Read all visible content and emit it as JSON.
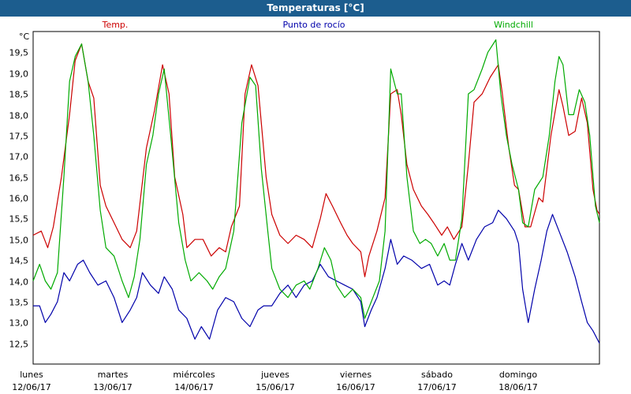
{
  "window": {
    "title": "Temperaturas [°C]"
  },
  "chart_data": {
    "type": "line",
    "title": "Temperaturas [°C]",
    "ylabel": "°C",
    "ylim": [
      12.0,
      20.0
    ],
    "yticks": [
      12.5,
      13.0,
      13.5,
      14.0,
      14.5,
      15.0,
      15.5,
      16.0,
      16.5,
      17.0,
      17.5,
      18.0,
      18.5,
      19.0,
      19.5
    ],
    "ytick_labels": [
      "12,5",
      "13,0",
      "13,5",
      "14,0",
      "14,5",
      "15,0",
      "15,5",
      "16,0",
      "16,5",
      "17,0",
      "17,5",
      "18,0",
      "18,5",
      "19,0",
      "19,5"
    ],
    "xlim": [
      0,
      7
    ],
    "days": [
      {
        "day": "lunes",
        "date": "12/06/17"
      },
      {
        "day": "martes",
        "date": "13/06/17"
      },
      {
        "day": "miércoles",
        "date": "14/06/17"
      },
      {
        "day": "jueves",
        "date": "15/06/17"
      },
      {
        "day": "viernes",
        "date": "16/06/17"
      },
      {
        "day": "sábado",
        "date": "17/06/17"
      },
      {
        "day": "domingo",
        "date": "18/06/17"
      }
    ],
    "grid": true,
    "series": [
      {
        "name": "Temp.",
        "color": "#cc0000",
        "points": [
          [
            0.0,
            15.1
          ],
          [
            0.1,
            15.2
          ],
          [
            0.18,
            14.8
          ],
          [
            0.25,
            15.3
          ],
          [
            0.35,
            16.5
          ],
          [
            0.45,
            18.0
          ],
          [
            0.52,
            19.3
          ],
          [
            0.6,
            19.7
          ],
          [
            0.68,
            18.8
          ],
          [
            0.75,
            18.4
          ],
          [
            0.83,
            16.3
          ],
          [
            0.9,
            15.8
          ],
          [
            1.0,
            15.4
          ],
          [
            1.1,
            15.0
          ],
          [
            1.2,
            14.8
          ],
          [
            1.28,
            15.2
          ],
          [
            1.4,
            17.2
          ],
          [
            1.5,
            18.1
          ],
          [
            1.6,
            19.2
          ],
          [
            1.68,
            18.5
          ],
          [
            1.75,
            16.5
          ],
          [
            1.85,
            15.6
          ],
          [
            1.9,
            14.8
          ],
          [
            2.0,
            15.0
          ],
          [
            2.1,
            15.0
          ],
          [
            2.2,
            14.6
          ],
          [
            2.3,
            14.8
          ],
          [
            2.38,
            14.7
          ],
          [
            2.45,
            15.3
          ],
          [
            2.55,
            15.8
          ],
          [
            2.62,
            18.5
          ],
          [
            2.7,
            19.2
          ],
          [
            2.78,
            18.7
          ],
          [
            2.88,
            16.5
          ],
          [
            2.95,
            15.6
          ],
          [
            3.05,
            15.1
          ],
          [
            3.15,
            14.9
          ],
          [
            3.25,
            15.1
          ],
          [
            3.35,
            15.0
          ],
          [
            3.45,
            14.8
          ],
          [
            3.55,
            15.5
          ],
          [
            3.62,
            16.1
          ],
          [
            3.7,
            15.8
          ],
          [
            3.8,
            15.4
          ],
          [
            3.88,
            15.1
          ],
          [
            3.95,
            14.9
          ],
          [
            4.05,
            14.7
          ],
          [
            4.1,
            14.1
          ],
          [
            4.15,
            14.6
          ],
          [
            4.25,
            15.2
          ],
          [
            4.35,
            16.0
          ],
          [
            4.42,
            18.5
          ],
          [
            4.5,
            18.6
          ],
          [
            4.55,
            18.0
          ],
          [
            4.62,
            16.8
          ],
          [
            4.7,
            16.2
          ],
          [
            4.8,
            15.8
          ],
          [
            4.88,
            15.6
          ],
          [
            4.95,
            15.4
          ],
          [
            5.05,
            15.1
          ],
          [
            5.12,
            15.3
          ],
          [
            5.2,
            15.0
          ],
          [
            5.3,
            15.3
          ],
          [
            5.38,
            16.8
          ],
          [
            5.45,
            18.3
          ],
          [
            5.55,
            18.5
          ],
          [
            5.65,
            18.9
          ],
          [
            5.75,
            19.2
          ],
          [
            5.8,
            18.5
          ],
          [
            5.88,
            17.2
          ],
          [
            5.95,
            16.3
          ],
          [
            6.0,
            16.2
          ],
          [
            6.08,
            15.3
          ],
          [
            6.15,
            15.3
          ],
          [
            6.25,
            16.0
          ],
          [
            6.3,
            15.9
          ],
          [
            6.4,
            17.5
          ],
          [
            6.5,
            18.6
          ],
          [
            6.55,
            18.2
          ],
          [
            6.62,
            17.5
          ],
          [
            6.7,
            17.6
          ],
          [
            6.78,
            18.4
          ],
          [
            6.85,
            17.8
          ],
          [
            6.92,
            16.2
          ],
          [
            6.97,
            15.7
          ],
          [
            7.0,
            15.6
          ]
        ]
      },
      {
        "name": "Punto de rocío",
        "color": "#0000aa",
        "points": [
          [
            0.0,
            13.4
          ],
          [
            0.08,
            13.4
          ],
          [
            0.15,
            13.0
          ],
          [
            0.22,
            13.2
          ],
          [
            0.3,
            13.5
          ],
          [
            0.38,
            14.2
          ],
          [
            0.45,
            14.0
          ],
          [
            0.55,
            14.4
          ],
          [
            0.62,
            14.5
          ],
          [
            0.7,
            14.2
          ],
          [
            0.8,
            13.9
          ],
          [
            0.9,
            14.0
          ],
          [
            1.0,
            13.6
          ],
          [
            1.1,
            13.0
          ],
          [
            1.2,
            13.3
          ],
          [
            1.28,
            13.6
          ],
          [
            1.35,
            14.2
          ],
          [
            1.45,
            13.9
          ],
          [
            1.55,
            13.7
          ],
          [
            1.62,
            14.1
          ],
          [
            1.72,
            13.8
          ],
          [
            1.8,
            13.3
          ],
          [
            1.9,
            13.1
          ],
          [
            2.0,
            12.6
          ],
          [
            2.08,
            12.9
          ],
          [
            2.18,
            12.6
          ],
          [
            2.28,
            13.3
          ],
          [
            2.38,
            13.6
          ],
          [
            2.48,
            13.5
          ],
          [
            2.58,
            13.1
          ],
          [
            2.68,
            12.9
          ],
          [
            2.78,
            13.3
          ],
          [
            2.85,
            13.4
          ],
          [
            2.95,
            13.4
          ],
          [
            3.05,
            13.7
          ],
          [
            3.15,
            13.9
          ],
          [
            3.25,
            13.6
          ],
          [
            3.35,
            13.9
          ],
          [
            3.45,
            14.0
          ],
          [
            3.55,
            14.4
          ],
          [
            3.65,
            14.1
          ],
          [
            3.75,
            14.0
          ],
          [
            3.85,
            13.9
          ],
          [
            3.95,
            13.8
          ],
          [
            4.05,
            13.5
          ],
          [
            4.1,
            12.9
          ],
          [
            4.18,
            13.3
          ],
          [
            4.25,
            13.6
          ],
          [
            4.35,
            14.3
          ],
          [
            4.42,
            15.0
          ],
          [
            4.5,
            14.4
          ],
          [
            4.58,
            14.6
          ],
          [
            4.68,
            14.5
          ],
          [
            4.8,
            14.3
          ],
          [
            4.9,
            14.4
          ],
          [
            5.0,
            13.9
          ],
          [
            5.08,
            14.0
          ],
          [
            5.15,
            13.9
          ],
          [
            5.22,
            14.4
          ],
          [
            5.3,
            14.9
          ],
          [
            5.38,
            14.5
          ],
          [
            5.48,
            15.0
          ],
          [
            5.58,
            15.3
          ],
          [
            5.68,
            15.4
          ],
          [
            5.75,
            15.7
          ],
          [
            5.85,
            15.5
          ],
          [
            5.95,
            15.2
          ],
          [
            6.0,
            14.9
          ],
          [
            6.05,
            13.8
          ],
          [
            6.12,
            13.0
          ],
          [
            6.2,
            13.8
          ],
          [
            6.28,
            14.5
          ],
          [
            6.35,
            15.2
          ],
          [
            6.42,
            15.6
          ],
          [
            6.5,
            15.2
          ],
          [
            6.6,
            14.7
          ],
          [
            6.7,
            14.1
          ],
          [
            6.78,
            13.5
          ],
          [
            6.85,
            13.0
          ],
          [
            6.92,
            12.8
          ],
          [
            7.0,
            12.5
          ]
        ]
      },
      {
        "name": "Windchill",
        "color": "#00aa00",
        "points": [
          [
            0.0,
            14.0
          ],
          [
            0.08,
            14.4
          ],
          [
            0.15,
            14.0
          ],
          [
            0.22,
            13.8
          ],
          [
            0.3,
            14.2
          ],
          [
            0.38,
            16.5
          ],
          [
            0.45,
            18.8
          ],
          [
            0.52,
            19.4
          ],
          [
            0.6,
            19.7
          ],
          [
            0.68,
            18.8
          ],
          [
            0.75,
            17.5
          ],
          [
            0.83,
            15.7
          ],
          [
            0.9,
            14.8
          ],
          [
            1.0,
            14.6
          ],
          [
            1.1,
            14.0
          ],
          [
            1.18,
            13.6
          ],
          [
            1.25,
            14.1
          ],
          [
            1.32,
            15.0
          ],
          [
            1.4,
            16.8
          ],
          [
            1.48,
            17.5
          ],
          [
            1.55,
            18.5
          ],
          [
            1.62,
            19.1
          ],
          [
            1.7,
            17.5
          ],
          [
            1.8,
            15.4
          ],
          [
            1.88,
            14.5
          ],
          [
            1.95,
            14.0
          ],
          [
            2.05,
            14.2
          ],
          [
            2.15,
            14.0
          ],
          [
            2.22,
            13.8
          ],
          [
            2.3,
            14.1
          ],
          [
            2.38,
            14.3
          ],
          [
            2.48,
            15.2
          ],
          [
            2.58,
            17.8
          ],
          [
            2.68,
            18.9
          ],
          [
            2.75,
            18.7
          ],
          [
            2.82,
            16.7
          ],
          [
            2.9,
            15.2
          ],
          [
            2.95,
            14.3
          ],
          [
            3.05,
            13.8
          ],
          [
            3.15,
            13.6
          ],
          [
            3.25,
            13.9
          ],
          [
            3.35,
            14.0
          ],
          [
            3.42,
            13.8
          ],
          [
            3.52,
            14.3
          ],
          [
            3.6,
            14.8
          ],
          [
            3.68,
            14.5
          ],
          [
            3.75,
            13.9
          ],
          [
            3.85,
            13.6
          ],
          [
            3.95,
            13.8
          ],
          [
            4.05,
            13.6
          ],
          [
            4.1,
            13.1
          ],
          [
            4.18,
            13.5
          ],
          [
            4.28,
            14.0
          ],
          [
            4.35,
            15.2
          ],
          [
            4.42,
            19.1
          ],
          [
            4.5,
            18.5
          ],
          [
            4.55,
            18.5
          ],
          [
            4.62,
            16.5
          ],
          [
            4.7,
            15.2
          ],
          [
            4.78,
            14.9
          ],
          [
            4.85,
            15.0
          ],
          [
            4.92,
            14.9
          ],
          [
            5.0,
            14.6
          ],
          [
            5.08,
            14.9
          ],
          [
            5.15,
            14.5
          ],
          [
            5.22,
            14.5
          ],
          [
            5.3,
            15.5
          ],
          [
            5.38,
            18.5
          ],
          [
            5.45,
            18.6
          ],
          [
            5.55,
            19.1
          ],
          [
            5.62,
            19.5
          ],
          [
            5.72,
            19.8
          ],
          [
            5.78,
            18.5
          ],
          [
            5.85,
            17.5
          ],
          [
            5.92,
            16.8
          ],
          [
            6.0,
            16.2
          ],
          [
            6.05,
            15.4
          ],
          [
            6.12,
            15.3
          ],
          [
            6.2,
            16.2
          ],
          [
            6.3,
            16.5
          ],
          [
            6.38,
            17.5
          ],
          [
            6.45,
            18.8
          ],
          [
            6.5,
            19.4
          ],
          [
            6.55,
            19.2
          ],
          [
            6.62,
            18.0
          ],
          [
            6.68,
            18.0
          ],
          [
            6.75,
            18.6
          ],
          [
            6.82,
            18.3
          ],
          [
            6.88,
            17.5
          ],
          [
            6.95,
            15.8
          ],
          [
            7.0,
            15.4
          ]
        ]
      }
    ]
  }
}
